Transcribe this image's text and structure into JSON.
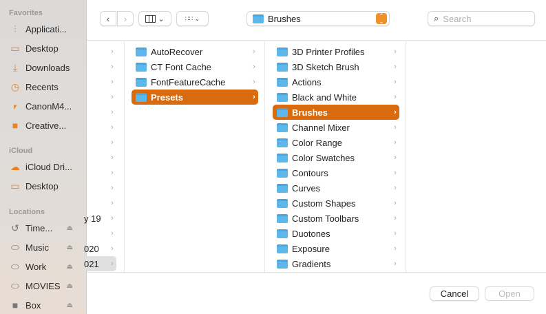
{
  "sidebar": {
    "favorites_header": "Favorites",
    "favorites": [
      {
        "label": "Applicati...",
        "icon": "applications-icon"
      },
      {
        "label": "Desktop",
        "icon": "desktop-icon"
      },
      {
        "label": "Downloads",
        "icon": "downloads-icon"
      },
      {
        "label": "Recents",
        "icon": "recents-icon"
      },
      {
        "label": "CanonM4...",
        "icon": "network-drive-icon"
      },
      {
        "label": "Creative...",
        "icon": "document-icon"
      }
    ],
    "icloud_header": "iCloud",
    "icloud": [
      {
        "label": "iCloud Dri...",
        "icon": "cloud-icon"
      },
      {
        "label": "Desktop",
        "icon": "desktop-icon"
      }
    ],
    "locations_header": "Locations",
    "locations": [
      {
        "label": "Time...",
        "icon": "time-machine-icon"
      },
      {
        "label": "Music",
        "icon": "drive-icon"
      },
      {
        "label": "Work",
        "icon": "drive-icon"
      },
      {
        "label": "MOVIES",
        "icon": "drive-icon"
      },
      {
        "label": "Box",
        "icon": "document-icon"
      }
    ]
  },
  "toolbar": {
    "path_label": "Brushes",
    "search_placeholder": "Search"
  },
  "columns": {
    "col1": [
      "",
      "",
      "",
      "",
      "",
      "",
      "",
      "",
      "",
      "",
      "",
      "y 19",
      "",
      "020",
      "021"
    ],
    "col2": [
      "AutoRecover",
      "CT Font Cache",
      "FontFeatureCache",
      "Presets"
    ],
    "col3": [
      "3D Printer Profiles",
      "3D Sketch Brush",
      "Actions",
      "Black and White",
      "Brushes",
      "Channel Mixer",
      "Color Range",
      "Color Swatches",
      "Contours",
      "Curves",
      "Custom Shapes",
      "Custom Toolbars",
      "Duotones",
      "Exposure",
      "Gradients"
    ]
  },
  "selected": {
    "col2": "Presets",
    "col3": "Brushes"
  },
  "buttons": {
    "cancel": "Cancel",
    "open": "Open"
  },
  "colors": {
    "accent": "#d96a0d",
    "folder": "#5cb8ea"
  }
}
